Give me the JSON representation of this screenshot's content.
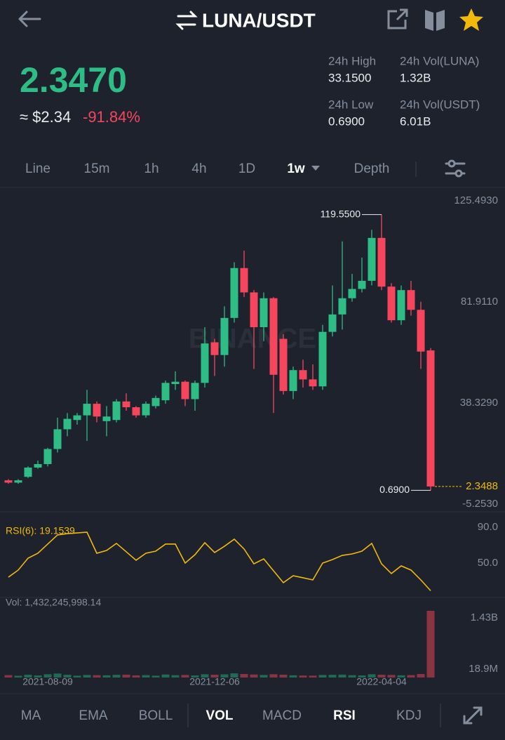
{
  "header": {
    "pair": "LUNA/USDT"
  },
  "ticker": {
    "last": "2.3470",
    "usd": "≈ $2.34",
    "change": "-91.84%",
    "stats": [
      {
        "label": "24h High",
        "value": "33.1500"
      },
      {
        "label": "24h Vol(LUNA)",
        "value": "1.32B"
      },
      {
        "label": "24h Low",
        "value": "0.6900"
      },
      {
        "label": "24h Vol(USDT)",
        "value": "6.01B"
      }
    ]
  },
  "tabs": [
    "Line",
    "15m",
    "1h",
    "4h",
    "1D",
    "1w",
    "Depth"
  ],
  "active_tab": 5,
  "indicators": [
    "MA",
    "EMA",
    "BOLL",
    "VOL",
    "MACD",
    "RSI",
    "KDJ"
  ],
  "active_indicators": [
    3,
    5
  ],
  "watermark": "BINANCE",
  "chart_data": [
    {
      "type": "candlestick",
      "up_color": "#2ebd85",
      "down_color": "#f6465d",
      "open": [
        5,
        4,
        6.5,
        10.5,
        12,
        18.5,
        27,
        31,
        33,
        38,
        30.5,
        31,
        39,
        36.5,
        33,
        37,
        39.5,
        46.5,
        47.5,
        40,
        47,
        64.5,
        59,
        75,
        96.5,
        86,
        71,
        83.5,
        66,
        43.5,
        52.5,
        48.5,
        45.5,
        69,
        76.5,
        83.5,
        87.5,
        91,
        109.5,
        88.5,
        74,
        87,
        78.5,
        61
      ],
      "high": [
        5.5,
        5.5,
        11,
        13.5,
        19,
        32,
        34,
        34,
        44,
        39,
        37,
        40,
        42.5,
        37,
        39,
        41.5,
        48,
        52,
        48,
        48,
        71,
        66,
        80,
        99,
        104,
        87,
        86,
        84,
        68,
        54,
        57,
        55,
        72,
        89,
        108,
        94,
        101,
        113,
        119.55,
        90,
        89,
        91,
        82,
        62
      ],
      "low": [
        3.5,
        3.5,
        6,
        10,
        11,
        17,
        24,
        29,
        22,
        30,
        24,
        30,
        35,
        32,
        32,
        36,
        38,
        44,
        37,
        35,
        45,
        50,
        54,
        73,
        84,
        53,
        65,
        34,
        42,
        40,
        45,
        44,
        44,
        67,
        70,
        82,
        86,
        89,
        87,
        73,
        72,
        76,
        53,
        0.69
      ],
      "close": [
        4,
        5,
        10.5,
        12,
        18.5,
        27,
        31.5,
        33,
        38,
        32.5,
        32.5,
        39,
        36.5,
        33,
        38,
        40.5,
        47,
        47.5,
        40,
        47,
        64,
        59,
        75,
        96.5,
        86,
        71,
        83.5,
        50.5,
        43.5,
        52.5,
        48.5,
        45.5,
        69,
        76.5,
        83.5,
        87.5,
        91,
        109.5,
        88.5,
        74,
        87,
        78.5,
        60.5,
        2.347
      ],
      "ylim": [
        -8.28,
        130.94
      ],
      "yticks": [
        {
          "value": 125.493,
          "label": "125.4930"
        },
        {
          "value": 81.911,
          "label": "81.9110"
        },
        {
          "value": 38.329,
          "label": "38.3290"
        },
        {
          "value": -5.253,
          "label": "-5.2530"
        }
      ],
      "annotations": [
        {
          "label": "119.5500",
          "value": 119.55,
          "index": 38,
          "kind": "high"
        },
        {
          "label": "0.6900",
          "value": 0.69,
          "index": 43,
          "kind": "low"
        }
      ],
      "price_tag": {
        "label": "2.3488",
        "value": 2.3488,
        "color": "#f0b90b"
      }
    },
    {
      "type": "line",
      "title": "RSI(6): 19.1539",
      "color": "#f0b90b",
      "values": [
        34.3,
        42.2,
        55.5,
        61.0,
        71.2,
        81.4,
        82.9,
        83.7,
        84.5,
        61.0,
        64.1,
        72.0,
        62.6,
        53.2,
        61.0,
        63.3,
        71.2,
        71.2,
        50.0,
        59.4,
        72.8,
        61.8,
        68.8,
        76.7,
        65.7,
        49.2,
        54.7,
        41.4,
        28.1,
        35.9,
        33.6,
        31.2,
        50.0,
        53.9,
        58.6,
        60.2,
        63.3,
        72.0,
        49.2,
        38.3,
        46.9,
        42.2,
        31.2,
        19.1539
      ],
      "ylim": [
        12.38,
        106.46
      ],
      "yticks": [
        {
          "value": 90,
          "label": "90.0"
        },
        {
          "value": 50,
          "label": "50.0"
        }
      ]
    },
    {
      "type": "bar",
      "title": "Vol: 1,432,245,998.14",
      "categories": [
        null,
        null,
        null,
        null,
        "2021-08-09",
        null,
        null,
        null,
        null,
        null,
        null,
        null,
        null,
        null,
        null,
        null,
        null,
        null,
        null,
        null,
        null,
        "2021-12-06",
        null,
        null,
        null,
        null,
        null,
        null,
        null,
        null,
        null,
        null,
        null,
        null,
        null,
        null,
        null,
        null,
        "2022-04-04",
        null,
        null,
        null,
        null,
        null
      ],
      "values": [
        52000000,
        38000000,
        60000000,
        45000000,
        70000000,
        85000000,
        60000000,
        40000000,
        55000000,
        50000000,
        48000000,
        58000000,
        62000000,
        45000000,
        52000000,
        40000000,
        65000000,
        50000000,
        55000000,
        45000000,
        70000000,
        60000000,
        68000000,
        90000000,
        75000000,
        65000000,
        55000000,
        70000000,
        60000000,
        48000000,
        42000000,
        40000000,
        55000000,
        58000000,
        62000000,
        50000000,
        45000000,
        70000000,
        60000000,
        55000000,
        48000000,
        52000000,
        75000000,
        1432245998.14
      ],
      "up_color": "#1f6b53",
      "down_color": "#8a3442",
      "ylim": [
        0,
        1703500000
      ],
      "yticks": [
        {
          "value": 1430000000,
          "label": "1.43B"
        },
        {
          "value": 18900000,
          "label": "18.9M"
        }
      ]
    }
  ]
}
